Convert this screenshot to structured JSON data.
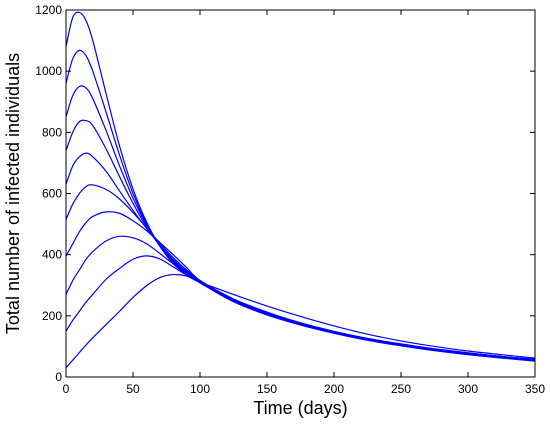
{
  "chart_data": {
    "type": "line",
    "title": "",
    "xlabel": "Time (days)",
    "ylabel": "Total number of infected individuals",
    "xlim": [
      0,
      350
    ],
    "ylim": [
      0,
      1200
    ],
    "xticks": [
      0,
      50,
      100,
      150,
      200,
      250,
      300,
      350
    ],
    "yticks": [
      0,
      200,
      400,
      600,
      800,
      1000,
      1200
    ],
    "grid": false,
    "line_color": "#0000ff",
    "x": [
      0,
      5,
      10,
      15,
      20,
      30,
      40,
      50,
      60,
      70,
      80,
      90,
      100,
      125,
      150,
      175,
      200,
      225,
      250,
      275,
      300,
      325,
      350
    ],
    "series": [
      {
        "values": [
          30,
          55,
          80,
          105,
          128,
          172,
          215,
          260,
          298,
          325,
          335,
          330,
          310,
          270,
          232,
          198,
          167,
          140,
          118,
          100,
          85,
          73,
          62
        ]
      },
      {
        "values": [
          150,
          185,
          215,
          245,
          270,
          320,
          355,
          385,
          396,
          386,
          360,
          333,
          310,
          252,
          210,
          175,
          148,
          125,
          107,
          91,
          78,
          67,
          57
        ]
      },
      {
        "values": [
          270,
          315,
          350,
          385,
          410,
          445,
          460,
          455,
          436,
          404,
          370,
          340,
          313,
          255,
          212,
          177,
          149,
          126,
          108,
          92,
          79,
          67,
          58
        ]
      },
      {
        "values": [
          395,
          435,
          475,
          505,
          525,
          540,
          535,
          511,
          479,
          440,
          400,
          358,
          316,
          255,
          212,
          177,
          149,
          126,
          108,
          92,
          79,
          67,
          58
        ]
      },
      {
        "values": [
          515,
          565,
          600,
          623,
          628,
          613,
          582,
          538,
          488,
          438,
          390,
          350,
          315,
          253,
          210,
          176,
          148,
          125,
          107,
          91,
          78,
          67,
          57
        ]
      },
      {
        "values": [
          630,
          690,
          720,
          732,
          720,
          672,
          608,
          545,
          487,
          432,
          384,
          345,
          313,
          252,
          209,
          175,
          147,
          124,
          106,
          90,
          77,
          66,
          56
        ]
      },
      {
        "values": [
          740,
          800,
          835,
          838,
          822,
          745,
          655,
          568,
          492,
          430,
          380,
          342,
          312,
          250,
          207,
          173,
          146,
          123,
          105,
          89,
          76,
          65,
          55
        ]
      },
      {
        "values": [
          850,
          920,
          950,
          945,
          910,
          805,
          690,
          585,
          498,
          428,
          376,
          338,
          310,
          248,
          205,
          172,
          145,
          122,
          104,
          88,
          75,
          64,
          54
        ]
      },
      {
        "values": [
          960,
          1040,
          1068,
          1050,
          1000,
          865,
          725,
          600,
          503,
          428,
          373,
          336,
          309,
          247,
          204,
          171,
          144,
          121,
          103,
          87,
          74,
          63,
          53
        ]
      },
      {
        "values": [
          1080,
          1175,
          1192,
          1165,
          1100,
          925,
          755,
          615,
          508,
          428,
          371,
          334,
          308,
          246,
          203,
          170,
          143,
          120,
          102,
          86,
          73,
          62,
          52
        ]
      }
    ]
  }
}
